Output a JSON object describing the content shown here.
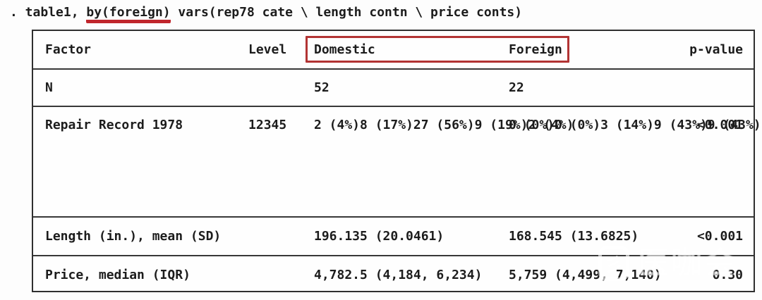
{
  "command": {
    "prefix": ". table1, ",
    "highlight": "by(foreign)",
    "suffix": " vars(rep78 cate \\ length contn \\ price conts)",
    "underline_color": "#c0262c"
  },
  "table": {
    "highlight_box_color": "#b23434",
    "header": {
      "factor": "Factor",
      "level": "Level",
      "domestic": "Domestic",
      "foreign": "Foreign",
      "pvalue": "p-value"
    },
    "n_row": {
      "factor": "N",
      "domestic": "52",
      "foreign": "22"
    },
    "repair": {
      "factor": "Repair Record 1978",
      "pvalue": "<0.001",
      "levels": [
        "1",
        "2",
        "3",
        "4",
        "5"
      ],
      "domestic": [
        "2 (4%)",
        "8 (17%)",
        "27 (56%)",
        "9 (19%)",
        "2 (4%)"
      ],
      "foreign": [
        "0 (0%)",
        "0 (0%)",
        "3 (14%)",
        "9 (43%)",
        "9 (43%)"
      ]
    },
    "length_row": {
      "factor": "Length (in.), mean (SD)",
      "domestic": "196.135 (20.0461)",
      "foreign": "168.545 (13.6825)",
      "pvalue": "<0.001"
    },
    "price_row": {
      "factor": "Price, median (IQR)",
      "domestic": "4,782.5 (4,184, 6,234)",
      "foreign": "5,759 (4,499, 7,140)",
      "pvalue": "0.30"
    }
  },
  "watermark": {
    "text": "医咖会",
    "icon": "medieco-logo-icon",
    "icon_glyph": "彡"
  }
}
